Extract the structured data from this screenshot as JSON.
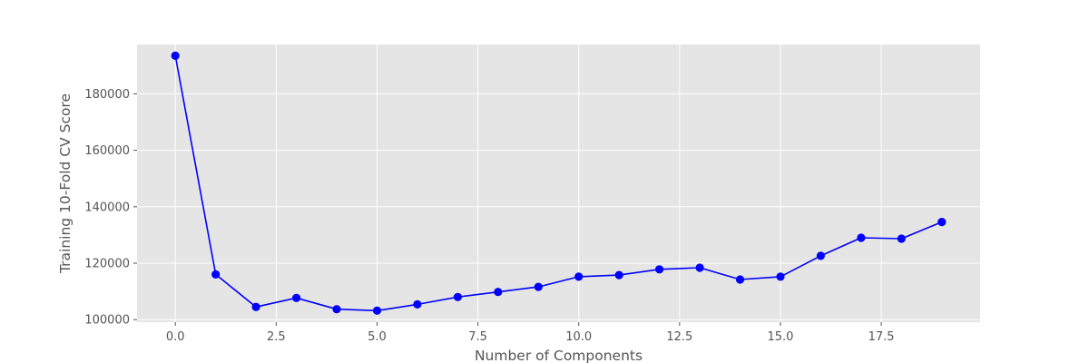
{
  "chart_data": {
    "type": "line",
    "title": "",
    "xlabel": "Number of Components",
    "ylabel": "Training 10-Fold CV Score",
    "xlim": [
      -0.95,
      19.95
    ],
    "ylim": [
      99100,
      197500
    ],
    "x_ticks": [
      0.0,
      2.5,
      5.0,
      7.5,
      10.0,
      12.5,
      15.0,
      17.5
    ],
    "x_tick_labels": [
      "0.0",
      "2.5",
      "5.0",
      "7.5",
      "10.0",
      "12.5",
      "15.0",
      "17.5"
    ],
    "y_ticks": [
      100000,
      120000,
      140000,
      160000,
      180000
    ],
    "y_tick_labels": [
      "100000",
      "120000",
      "140000",
      "160000",
      "180000"
    ],
    "grid": true,
    "style": "ggplot",
    "series": [
      {
        "color": "#0000ff",
        "marker": "circle",
        "x": [
          0,
          1,
          2,
          3,
          4,
          5,
          6,
          7,
          8,
          9,
          10,
          11,
          12,
          13,
          14,
          15,
          16,
          17,
          18,
          19
        ],
        "y": [
          193500,
          116000,
          104500,
          107700,
          103700,
          103200,
          105400,
          108000,
          109800,
          111600,
          115200,
          115800,
          117800,
          118400,
          114200,
          115200,
          122600,
          129000,
          128700,
          134600
        ]
      }
    ],
    "colors": {
      "plot_bg": "#e5e5e5",
      "grid": "#ffffff",
      "text": "#555555"
    }
  }
}
